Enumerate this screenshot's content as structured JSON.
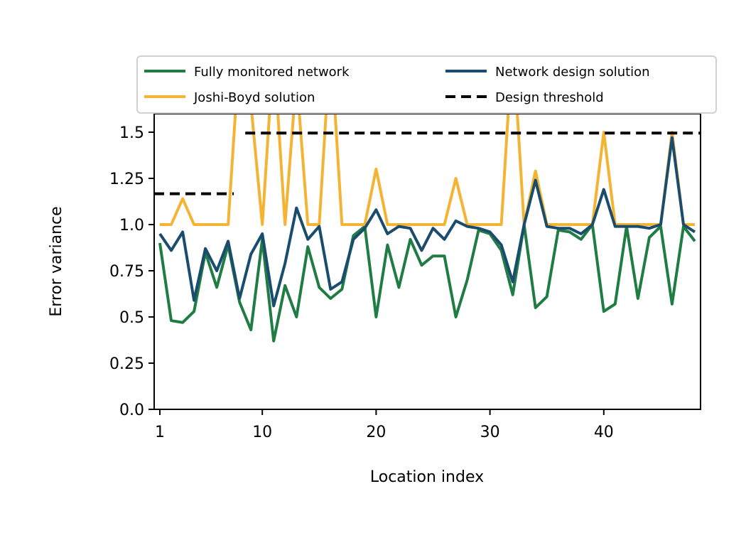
{
  "chart_data": {
    "type": "line",
    "title": "",
    "xlabel": "Location index",
    "ylabel": "Error variance",
    "xlim": [
      0.5,
      48.5
    ],
    "ylim": [
      0,
      1.6
    ],
    "x_ticks": [
      1,
      10,
      20,
      30,
      40
    ],
    "x_tick_labels": [
      "1",
      "10",
      "20",
      "30",
      "40"
    ],
    "y_ticks": [
      0,
      0.25,
      0.5,
      0.75,
      1.0,
      1.25,
      1.5
    ],
    "y_tick_labels": [
      "0.0",
      "0.25",
      "0.5",
      "0.75",
      "1.0",
      "1.25",
      "1.5"
    ],
    "grid": false,
    "legend_position": "top, above plot, two columns",
    "x": [
      1,
      2,
      3,
      4,
      5,
      6,
      7,
      8,
      9,
      10,
      11,
      12,
      13,
      14,
      15,
      16,
      17,
      18,
      19,
      20,
      21,
      22,
      23,
      24,
      25,
      26,
      27,
      28,
      29,
      30,
      31,
      32,
      33,
      34,
      35,
      36,
      37,
      38,
      39,
      40,
      41,
      42,
      43,
      44,
      45,
      46,
      47,
      48
    ],
    "series": [
      {
        "name": "Fully monitored network",
        "color": "#1f7d44",
        "style": "solid",
        "values": [
          0.9,
          0.48,
          0.47,
          0.53,
          0.85,
          0.66,
          0.89,
          0.58,
          0.43,
          0.92,
          0.37,
          0.67,
          0.5,
          0.88,
          0.66,
          0.6,
          0.65,
          0.94,
          0.99,
          0.5,
          0.89,
          0.66,
          0.92,
          0.78,
          0.83,
          0.83,
          0.5,
          0.7,
          0.97,
          0.95,
          0.86,
          0.62,
          1.0,
          0.55,
          0.61,
          0.97,
          0.96,
          0.92,
          1.0,
          0.53,
          0.57,
          0.99,
          0.6,
          0.93,
          0.99,
          0.57,
          0.99,
          0.91
        ]
      },
      {
        "name": "Joshi-Boyd solution",
        "color": "#f5b334",
        "style": "solid",
        "values": [
          1.0,
          1.0,
          1.14,
          1.0,
          1.0,
          1.0,
          1.0,
          1.95,
          1.65,
          1.0,
          1.95,
          1.0,
          1.8,
          1.0,
          1.0,
          2.0,
          1.0,
          1.0,
          1.0,
          1.3,
          1.0,
          1.0,
          1.0,
          1.0,
          1.0,
          1.0,
          1.25,
          1.0,
          1.0,
          1.0,
          1.0,
          2.0,
          1.0,
          1.29,
          1.0,
          1.0,
          1.0,
          1.0,
          1.0,
          1.5,
          1.0,
          1.0,
          1.0,
          1.0,
          1.0,
          1.5,
          1.0,
          1.0
        ]
      },
      {
        "name": "Network design solution",
        "color": "#1a4c6e",
        "style": "solid",
        "values": [
          0.95,
          0.86,
          0.96,
          0.59,
          0.87,
          0.75,
          0.91,
          0.6,
          0.84,
          0.95,
          0.56,
          0.79,
          1.09,
          0.92,
          0.99,
          0.65,
          0.69,
          0.92,
          0.98,
          1.08,
          0.95,
          0.99,
          0.98,
          0.86,
          0.98,
          0.92,
          1.02,
          0.99,
          0.98,
          0.96,
          0.89,
          0.69,
          1.0,
          1.24,
          0.99,
          0.98,
          0.98,
          0.95,
          1.0,
          1.19,
          0.99,
          0.99,
          0.99,
          0.98,
          1.0,
          1.47,
          1.0,
          0.96
        ]
      },
      {
        "name": "Design threshold",
        "color": "#000000",
        "style": "dashed",
        "segments": [
          {
            "x": [
              0.5,
              7.5
            ],
            "y": [
              1.167,
              1.167
            ]
          },
          {
            "x": [
              8.5,
              48.5
            ],
            "y": [
              1.495,
              1.495
            ]
          }
        ]
      }
    ]
  }
}
